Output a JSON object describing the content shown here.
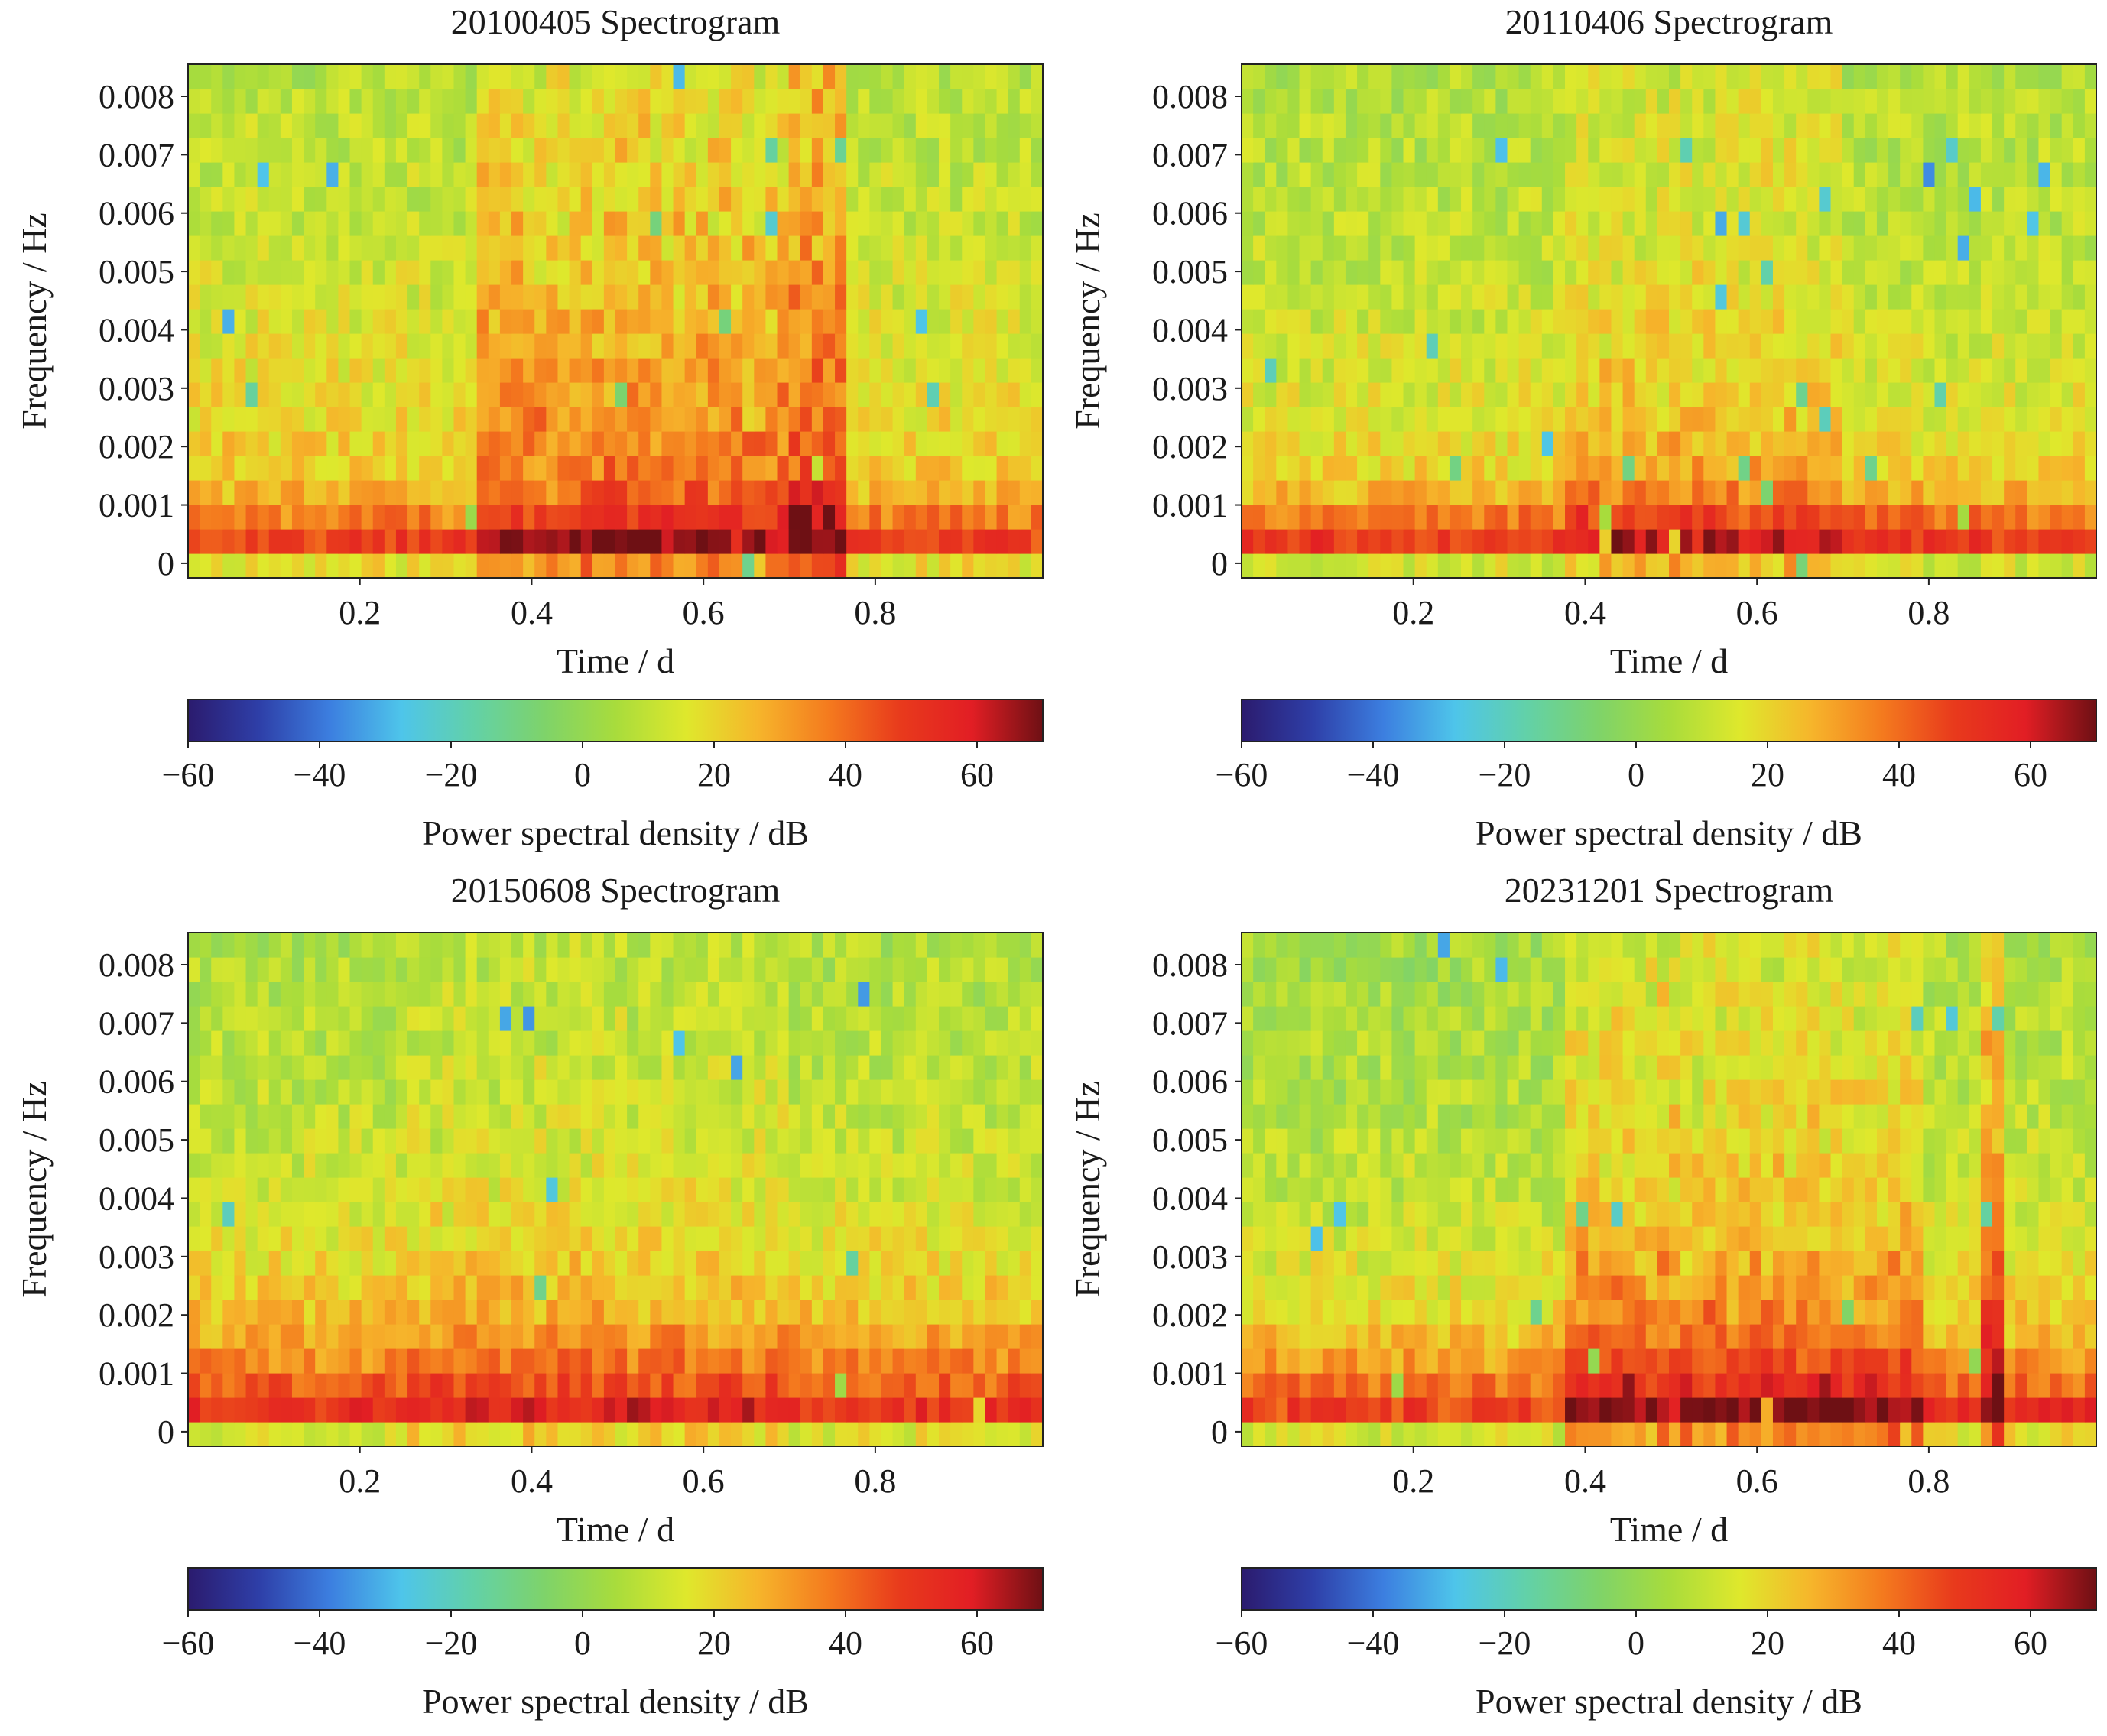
{
  "figure": {
    "colorbar_label": "Power spectral density / dB",
    "xlabel": "Time / d",
    "ylabel": "Frequency / Hz"
  },
  "colormap": {
    "name": "turbo-like",
    "stops": [
      "#2b1b6e",
      "#2e3fa8",
      "#3c7fe0",
      "#4ec5ea",
      "#62d1a8",
      "#7ed36a",
      "#a8dc3c",
      "#dfe82c",
      "#f6b52b",
      "#f47a1e",
      "#e83a1c",
      "#e21e24",
      "#6e1014"
    ]
  },
  "chart_data": [
    {
      "type": "heatmap",
      "title": "20100405 Spectrogram",
      "xlabel": "Time / d",
      "ylabel": "Frequency / Hz",
      "x_ticks": [
        "0.2",
        "0.4",
        "0.6",
        "0.8"
      ],
      "x_tick_values": [
        0.2,
        0.4,
        0.6,
        0.8
      ],
      "y_ticks": [
        "0",
        "0.001",
        "0.002",
        "0.003",
        "0.004",
        "0.005",
        "0.006",
        "0.007",
        "0.008"
      ],
      "y_tick_values": [
        0,
        0.001,
        0.002,
        0.003,
        0.004,
        0.005,
        0.006,
        0.007,
        0.008
      ],
      "xlim": [
        0.0,
        0.995
      ],
      "ylim": [
        -0.00025,
        0.00855
      ],
      "colorbar": {
        "label": "Power spectral density / dB",
        "range": [
          -60,
          70
        ],
        "ticks": [
          "-60",
          "-40",
          "-20",
          "0",
          "20",
          "40",
          "60"
        ],
        "tick_values": [
          -60,
          -40,
          -20,
          0,
          20,
          40,
          60
        ]
      },
      "grid": {
        "time_bins": 74,
        "freq_bins": 21,
        "time_range": [
          0.0,
          0.995
        ],
        "freq_range": [
          -0.00025,
          0.00855
        ],
        "seed": 11
      },
      "profile": {
        "baseline_by_freq_dB": [
          18,
          48,
          36,
          26,
          22,
          21,
          19,
          18,
          17,
          16,
          15,
          14,
          13,
          12,
          11,
          10,
          10,
          9,
          9,
          8,
          7
        ],
        "active_periods": [
          {
            "t_start": 0.34,
            "t_end": 0.76,
            "boost_dB": 17,
            "freq_decay": 7.0
          },
          {
            "t_start": 0.7,
            "t_end": 0.77,
            "boost_dB": 12,
            "freq_decay": 5.0
          }
        ]
      }
    },
    {
      "type": "heatmap",
      "title": "20110406 Spectrogram",
      "xlabel": "Time / d",
      "ylabel": "Frequency / Hz",
      "x_ticks": [
        "0.2",
        "0.4",
        "0.6",
        "0.8"
      ],
      "x_tick_values": [
        0.2,
        0.4,
        0.6,
        0.8
      ],
      "y_ticks": [
        "0",
        "0.001",
        "0.002",
        "0.003",
        "0.004",
        "0.005",
        "0.006",
        "0.007",
        "0.008"
      ],
      "y_tick_values": [
        0,
        0.001,
        0.002,
        0.003,
        0.004,
        0.005,
        0.006,
        0.007,
        0.008
      ],
      "xlim": [
        0.0,
        0.995
      ],
      "ylim": [
        -0.00025,
        0.00855
      ],
      "colorbar": {
        "label": "Power spectral density / dB",
        "range": [
          -60,
          70
        ],
        "ticks": [
          "-60",
          "-40",
          "-20",
          "0",
          "20",
          "40",
          "60"
        ],
        "tick_values": [
          -60,
          -40,
          -20,
          0,
          20,
          40,
          60
        ]
      },
      "grid": {
        "time_bins": 74,
        "freq_bins": 21,
        "time_range": [
          0.0,
          0.995
        ],
        "freq_range": [
          -0.00025,
          0.00855
        ],
        "seed": 23
      },
      "profile": {
        "baseline_by_freq_dB": [
          14,
          50,
          38,
          26,
          20,
          18,
          16,
          15,
          14,
          13,
          12,
          11,
          10,
          10,
          9,
          9,
          8,
          8,
          8,
          7,
          7
        ],
        "active_periods": [
          {
            "t_start": 0.38,
            "t_end": 0.7,
            "boost_dB": 11,
            "freq_decay": 4.0
          }
        ]
      }
    },
    {
      "type": "heatmap",
      "title": "20150608 Spectrogram",
      "xlabel": "Time / d",
      "ylabel": "Frequency / Hz",
      "x_ticks": [
        "0.2",
        "0.4",
        "0.6",
        "0.8"
      ],
      "x_tick_values": [
        0.2,
        0.4,
        0.6,
        0.8
      ],
      "y_ticks": [
        "0",
        "0.001",
        "0.002",
        "0.003",
        "0.004",
        "0.005",
        "0.006",
        "0.007",
        "0.008"
      ],
      "y_tick_values": [
        0,
        0.001,
        0.002,
        0.003,
        0.004,
        0.005,
        0.006,
        0.007,
        0.008
      ],
      "xlim": [
        0.0,
        0.995
      ],
      "ylim": [
        -0.00025,
        0.00855
      ],
      "colorbar": {
        "label": "Power spectral density / dB",
        "range": [
          -60,
          70
        ],
        "ticks": [
          "-60",
          "-40",
          "-20",
          "0",
          "20",
          "40",
          "60"
        ],
        "tick_values": [
          -60,
          -40,
          -20,
          0,
          20,
          40,
          60
        ]
      },
      "grid": {
        "time_bins": 74,
        "freq_bins": 21,
        "time_range": [
          0.0,
          0.995
        ],
        "freq_range": [
          -0.00025,
          0.00855
        ],
        "seed": 37
      },
      "profile": {
        "baseline_by_freq_dB": [
          16,
          52,
          42,
          34,
          29,
          24,
          21,
          19,
          17,
          15,
          13,
          12,
          11,
          10,
          9,
          9,
          8,
          8,
          7,
          7,
          6
        ],
        "active_periods": [
          {
            "t_start": 0.25,
            "t_end": 0.7,
            "boost_dB": 5,
            "freq_decay": 3.0
          }
        ]
      }
    },
    {
      "type": "heatmap",
      "title": "20231201 Spectrogram",
      "xlabel": "Time / d",
      "ylabel": "Frequency / Hz",
      "x_ticks": [
        "0.2",
        "0.4",
        "0.6",
        "0.8"
      ],
      "x_tick_values": [
        0.2,
        0.4,
        0.6,
        0.8
      ],
      "y_ticks": [
        "0",
        "0.001",
        "0.002",
        "0.003",
        "0.004",
        "0.005",
        "0.006",
        "0.007",
        "0.008"
      ],
      "y_tick_values": [
        0,
        0.001,
        0.002,
        0.003,
        0.004,
        0.005,
        0.006,
        0.007,
        0.008
      ],
      "xlim": [
        0.0,
        0.995
      ],
      "ylim": [
        -0.00025,
        0.00855
      ],
      "colorbar": {
        "label": "Power spectral density / dB",
        "range": [
          -60,
          70
        ],
        "ticks": [
          "-60",
          "-40",
          "-20",
          "0",
          "20",
          "40",
          "60"
        ],
        "tick_values": [
          -60,
          -40,
          -20,
          0,
          20,
          40,
          60
        ]
      },
      "grid": {
        "time_bins": 74,
        "freq_bins": 21,
        "time_range": [
          0.0,
          0.995
        ],
        "freq_range": [
          -0.00025,
          0.00855
        ],
        "seed": 53
      },
      "profile": {
        "baseline_by_freq_dB": [
          18,
          52,
          40,
          32,
          26,
          22,
          19,
          17,
          15,
          13,
          12,
          11,
          10,
          9,
          9,
          8,
          8,
          7,
          7,
          6,
          6
        ],
        "active_periods": [
          {
            "t_start": 0.0,
            "t_end": 0.38,
            "boost_dB": -4,
            "freq_decay": 0.2
          },
          {
            "t_start": 0.38,
            "t_end": 0.8,
            "boost_dB": 16,
            "freq_decay": 6.0
          },
          {
            "t_start": 0.855,
            "t_end": 0.885,
            "boost_dB": 26,
            "freq_decay": 14.0
          }
        ]
      }
    }
  ]
}
